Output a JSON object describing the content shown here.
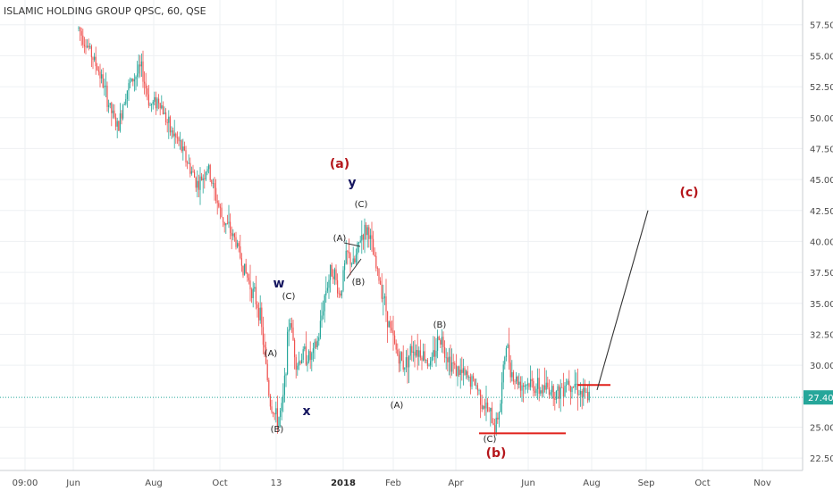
{
  "chart_data": {
    "type": "candlestick",
    "title": "ISLAMIC HOLDING GROUP QPSC, 60, QSE",
    "y_axis": {
      "ticks": [
        "57.50",
        "55.00",
        "52.50",
        "50.00",
        "47.50",
        "45.00",
        "42.50",
        "40.00",
        "37.50",
        "35.00",
        "32.50",
        "30.00",
        "25.00",
        "22.50"
      ],
      "range": [
        21.5,
        59.5
      ]
    },
    "x_axis": {
      "ticks": [
        "09:00",
        "Jun",
        "Aug",
        "Oct",
        "13",
        "2018",
        "Feb",
        "Apr",
        "Jun",
        "Aug",
        "Sep",
        "Oct",
        "Nov"
      ],
      "bold_ticks": [
        "2018"
      ]
    },
    "last_price": {
      "value": 27.4,
      "label": "27.40",
      "color": "#26a69a"
    },
    "price_path": {
      "comment_free": true,
      "x": [
        88,
        100,
        112,
        122,
        132,
        140,
        148,
        158,
        168,
        178,
        190,
        200,
        212,
        222,
        232,
        240,
        248,
        256,
        264,
        272,
        280,
        290,
        296,
        302,
        310,
        316,
        324,
        332,
        340,
        348,
        356,
        364,
        372,
        380,
        388,
        396,
        404,
        412,
        420,
        428,
        436,
        444,
        452,
        462,
        472,
        482,
        492,
        502,
        512,
        522,
        532,
        540,
        548,
        554,
        560,
        566,
        574,
        584,
        594,
        604,
        614,
        624,
        634,
        644,
        652,
        660
      ],
      "y": [
        57.2,
        55.5,
        53.5,
        51.0,
        49.0,
        52.0,
        53.0,
        54.0,
        51.0,
        51.5,
        49.0,
        48.0,
        46.0,
        44.5,
        46.0,
        44.0,
        42.0,
        41.0,
        40.0,
        38.0,
        36.5,
        34.5,
        31.0,
        27.0,
        25.5,
        26.5,
        34.0,
        30.0,
        31.0,
        30.5,
        32.0,
        36.0,
        38.0,
        35.5,
        39.0,
        38.0,
        40.5,
        41.0,
        38.0,
        36.0,
        33.0,
        31.0,
        30.0,
        31.5,
        31.0,
        30.0,
        32.5,
        30.5,
        29.5,
        29.0,
        28.5,
        27.0,
        26.0,
        25.0,
        27.0,
        31.8,
        29.0,
        28.5,
        28.5,
        28.0,
        28.2,
        27.7,
        28.8,
        28.5,
        27.5,
        27.4
      ]
    },
    "projection_line": {
      "from": [
        "Aug",
        28.0
      ],
      "to": [
        "Sep",
        42.5
      ]
    },
    "horizontal_levels": [
      {
        "value": 24.5,
        "from_label": "Apr",
        "to_label": "Jun",
        "color": "#e0201b"
      },
      {
        "value": 28.4,
        "color": "#e0201b"
      }
    ],
    "annotations": [
      {
        "text": "(a)",
        "style": "red"
      },
      {
        "text": "(b)",
        "style": "red"
      },
      {
        "text": "(c)",
        "style": "red"
      },
      {
        "text": "w",
        "style": "navy"
      },
      {
        "text": "x",
        "style": "navy"
      },
      {
        "text": "y",
        "style": "navy"
      },
      {
        "text": "(A)",
        "style": "small"
      },
      {
        "text": "(B)",
        "style": "small"
      },
      {
        "text": "(C)",
        "style": "small"
      },
      {
        "text": "(A)",
        "style": "small"
      },
      {
        "text": "(B)",
        "style": "small"
      },
      {
        "text": "(C)",
        "style": "small"
      },
      {
        "text": "(A)",
        "style": "small"
      },
      {
        "text": "(B)",
        "style": "small"
      },
      {
        "text": "(C)",
        "style": "small"
      }
    ],
    "colors": {
      "up": "#26a69a",
      "down": "#ef5350",
      "wave_red": "#b5161b",
      "wave_navy": "#15155f",
      "level_line": "#e0201b"
    }
  }
}
